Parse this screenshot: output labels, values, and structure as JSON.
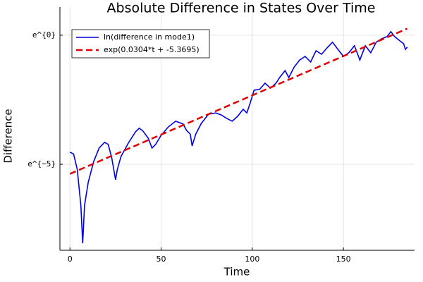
{
  "chart_data": {
    "type": "line",
    "title": "Absolute Difference in States Over Time",
    "x_label": "Time",
    "y_label": "Difference",
    "xlim": [
      -5.5,
      189
    ],
    "xticks": [
      0,
      50,
      100,
      150
    ],
    "ylim": [
      -8.33,
      1.09
    ],
    "yticks": [
      {
        "value": -5,
        "label": "e^{−5}"
      },
      {
        "value": 0,
        "label": "e^{0}"
      }
    ],
    "grid": true,
    "legend": "top-left",
    "series": [
      {
        "name": "ln(difference in mode1)",
        "color": "#0000e0",
        "dash": false,
        "x": [
          0,
          2,
          4,
          6,
          7,
          8,
          10,
          13,
          16,
          19,
          21,
          23,
          25,
          26,
          28,
          32,
          36,
          38,
          40,
          43,
          45,
          47,
          50,
          54,
          58,
          62,
          64,
          66,
          67,
          69,
          72,
          76,
          80,
          83,
          86,
          89,
          92,
          95,
          97,
          99,
          101,
          104,
          107,
          110,
          113,
          115,
          118,
          120,
          123,
          126,
          129,
          132,
          135,
          138,
          141,
          144,
          147,
          150,
          153,
          156,
          159,
          162,
          165,
          168,
          171,
          174,
          176,
          178,
          181,
          183,
          184,
          185
        ],
        "values": [
          -4.53,
          -4.6,
          -5.2,
          -6.6,
          -8.06,
          -6.6,
          -5.7,
          -4.9,
          -4.37,
          -4.15,
          -4.23,
          -4.78,
          -5.6,
          -5.19,
          -4.7,
          -4.18,
          -3.74,
          -3.6,
          -3.71,
          -3.99,
          -4.37,
          -4.23,
          -3.88,
          -3.55,
          -3.33,
          -3.44,
          -3.69,
          -3.83,
          -4.29,
          -3.83,
          -3.42,
          -3.06,
          -3.01,
          -3.09,
          -3.22,
          -3.33,
          -3.14,
          -2.87,
          -3.01,
          -2.6,
          -2.13,
          -2.1,
          -1.86,
          -2.05,
          -1.86,
          -1.64,
          -1.37,
          -1.64,
          -1.23,
          -0.96,
          -0.82,
          -1.04,
          -0.6,
          -0.74,
          -0.49,
          -0.27,
          -0.55,
          -0.82,
          -0.68,
          -0.41,
          -0.96,
          -0.41,
          -0.68,
          -0.27,
          -0.14,
          -0.05,
          0.14,
          -0.05,
          -0.22,
          -0.33,
          -0.55,
          -0.46
        ]
      },
      {
        "name": "exp(0.0304*t + -5.3695)",
        "color": "#e00000",
        "dash": true,
        "x": [
          0,
          185
        ],
        "values": [
          -5.3695,
          0.2545
        ]
      }
    ]
  }
}
